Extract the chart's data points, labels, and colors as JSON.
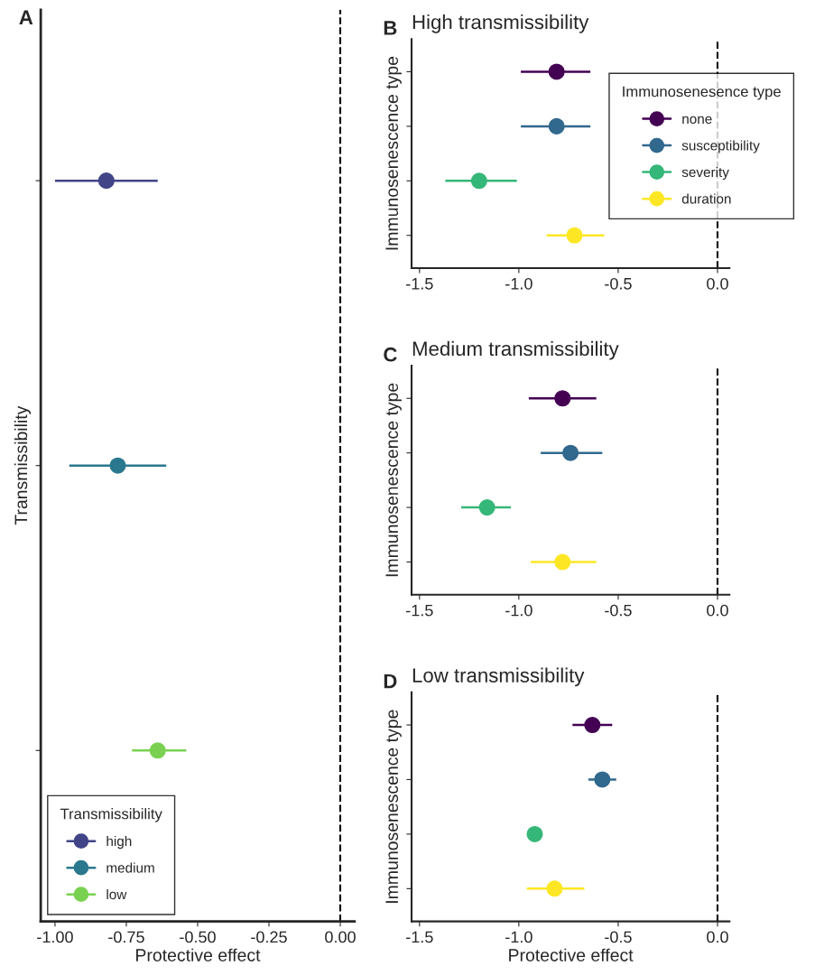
{
  "chart_data": [
    {
      "type": "scatter",
      "orientation": "horizontal",
      "annotations": [
        "A"
      ],
      "xlabel": "Protective effect",
      "ylabel": "Transmissibility",
      "legend_title": "Transmissibility",
      "legend": "bottom left",
      "marker": "circle",
      "grid": false,
      "tick_labels": "x",
      "categories": [
        null,
        null,
        null
      ],
      "xlim": [
        -1.05,
        0.05
      ],
      "xticks": [
        {
          "value": -1.0,
          "label": "-1.00"
        },
        {
          "value": -0.75,
          "label": "-0.75"
        },
        {
          "value": -0.5,
          "label": "-0.50"
        },
        {
          "value": -0.25,
          "label": "-0.25"
        },
        {
          "value": 0.0,
          "label": "0.00"
        }
      ],
      "ref_lines": [
        {
          "axis": "x",
          "value": 0,
          "line_style": "dashed",
          "color": "#000000"
        }
      ],
      "series": [
        {
          "name": "high",
          "color": "#414487",
          "values": [
            -0.82,
            null,
            null
          ],
          "errors": [
            [
              -1.0,
              -0.64
            ],
            null,
            null
          ]
        },
        {
          "name": "medium",
          "color": "#2a788e",
          "values": [
            null,
            -0.78,
            null
          ],
          "errors": [
            null,
            [
              -0.95,
              -0.61
            ],
            null
          ]
        },
        {
          "name": "low",
          "color": "#7ad151",
          "values": [
            null,
            null,
            -0.64
          ],
          "errors": [
            null,
            null,
            [
              -0.73,
              -0.54
            ]
          ]
        }
      ]
    },
    {
      "type": "scatter",
      "orientation": "horizontal",
      "annotations": [
        "B"
      ],
      "title": "High transmissibility",
      "ylabel": "Immunosenescence type",
      "legend_title": "Immunosenesence type",
      "legend": "right",
      "marker": "circle",
      "grid": false,
      "tick_labels": "x",
      "categories": [
        null,
        null,
        null,
        null
      ],
      "xlim": [
        -1.54,
        0.06
      ],
      "xticks": [
        {
          "value": -1.5,
          "label": "-1.5"
        },
        {
          "value": -1.0,
          "label": "-1.0"
        },
        {
          "value": -0.5,
          "label": "-0.5"
        },
        {
          "value": 0.0,
          "label": "0.0"
        }
      ],
      "ref_lines": [
        {
          "axis": "x",
          "value": 0,
          "line_style": "dashed",
          "color": "#000000"
        }
      ],
      "series": [
        {
          "name": "none",
          "color": "#440154",
          "values": [
            -0.81,
            null,
            null,
            null
          ],
          "errors": [
            [
              -0.99,
              -0.64
            ],
            null,
            null,
            null
          ]
        },
        {
          "name": "susceptibility",
          "color": "#31688e",
          "values": [
            null,
            -0.81,
            null,
            null
          ],
          "errors": [
            null,
            [
              -0.99,
              -0.64
            ],
            null,
            null
          ]
        },
        {
          "name": "severity",
          "color": "#35b779",
          "values": [
            null,
            null,
            -1.2,
            null
          ],
          "errors": [
            null,
            null,
            [
              -1.37,
              -1.01
            ],
            null
          ]
        },
        {
          "name": "duration",
          "color": "#fde725",
          "values": [
            null,
            null,
            null,
            -0.72
          ],
          "errors": [
            null,
            null,
            null,
            [
              -0.86,
              -0.57
            ]
          ]
        }
      ]
    },
    {
      "type": "scatter",
      "orientation": "horizontal",
      "annotations": [
        "C"
      ],
      "title": "Medium transmissibility",
      "ylabel": "Immunosenescence type",
      "legend": false,
      "marker": "circle",
      "grid": false,
      "tick_labels": "x",
      "categories": [
        null,
        null,
        null,
        null
      ],
      "xlim": [
        -1.54,
        0.06
      ],
      "xticks": [
        {
          "value": -1.5,
          "label": "-1.5"
        },
        {
          "value": -1.0,
          "label": "-1.0"
        },
        {
          "value": -0.5,
          "label": "-0.5"
        },
        {
          "value": 0.0,
          "label": "0.0"
        }
      ],
      "ref_lines": [
        {
          "axis": "x",
          "value": 0,
          "line_style": "dashed",
          "color": "#000000"
        }
      ],
      "series": [
        {
          "color": "#440154",
          "values": [
            -0.78,
            null,
            null,
            null
          ],
          "errors": [
            [
              -0.95,
              -0.61
            ],
            null,
            null,
            null
          ]
        },
        {
          "color": "#31688e",
          "values": [
            null,
            -0.74,
            null,
            null
          ],
          "errors": [
            null,
            [
              -0.89,
              -0.58
            ],
            null,
            null
          ]
        },
        {
          "color": "#35b779",
          "values": [
            null,
            null,
            -1.16,
            null
          ],
          "errors": [
            null,
            null,
            [
              -1.29,
              -1.04
            ],
            null
          ]
        },
        {
          "color": "#fde725",
          "values": [
            null,
            null,
            null,
            -0.78
          ],
          "errors": [
            null,
            null,
            null,
            [
              -0.94,
              -0.61
            ]
          ]
        }
      ]
    },
    {
      "type": "scatter",
      "orientation": "horizontal",
      "annotations": [
        "D"
      ],
      "title": "Low transmissibility",
      "xlabel": "Protective effect",
      "ylabel": "Immunosenescence type",
      "legend": false,
      "marker": "circle",
      "grid": false,
      "tick_labels": "x",
      "categories": [
        null,
        null,
        null,
        null
      ],
      "xlim": [
        -1.54,
        0.06
      ],
      "xticks": [
        {
          "value": -1.5,
          "label": "-1.5"
        },
        {
          "value": -1.0,
          "label": "-1.0"
        },
        {
          "value": -0.5,
          "label": "-0.5"
        },
        {
          "value": 0.0,
          "label": "0.0"
        }
      ],
      "ref_lines": [
        {
          "axis": "x",
          "value": 0,
          "line_style": "dashed",
          "color": "#000000"
        }
      ],
      "series": [
        {
          "color": "#440154",
          "values": [
            -0.63,
            null,
            null,
            null
          ],
          "errors": [
            [
              -0.73,
              -0.53
            ],
            null,
            null,
            null
          ]
        },
        {
          "color": "#31688e",
          "values": [
            null,
            -0.58,
            null,
            null
          ],
          "errors": [
            null,
            [
              -0.65,
              -0.51
            ],
            null,
            null
          ]
        },
        {
          "color": "#35b779",
          "values": [
            null,
            null,
            -0.92,
            null
          ],
          "errors": [
            null,
            null,
            null,
            null
          ]
        },
        {
          "color": "#fde725",
          "values": [
            null,
            null,
            null,
            -0.82
          ],
          "errors": [
            null,
            null,
            null,
            [
              -0.96,
              -0.67
            ]
          ]
        }
      ]
    }
  ]
}
